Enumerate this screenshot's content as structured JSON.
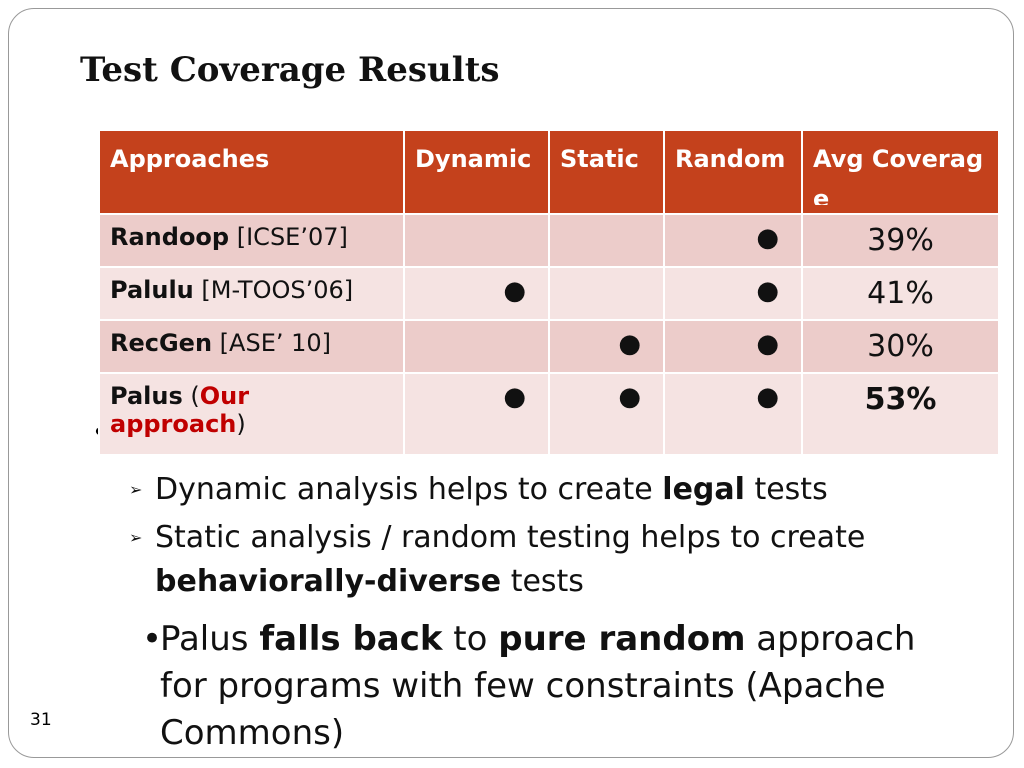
{
  "title": "Test Coverage Results",
  "table": {
    "header": [
      "Approaches",
      "Dynamic",
      "Static",
      "Random",
      "Avg Coverage"
    ],
    "rows": [
      {
        "approach": [
          {
            "text": "Randoop",
            "bold": true
          },
          {
            "text": " [ICSE’07]"
          }
        ],
        "dynamic": null,
        "static": null,
        "random": "●",
        "coverage": "39%"
      },
      {
        "approach": [
          {
            "text": "Palulu",
            "bold": true
          },
          {
            "text": " [M-TOOS’06]"
          }
        ],
        "dynamic": "●",
        "static": null,
        "random": "●",
        "coverage": "41%"
      },
      {
        "approach": [
          {
            "text": "RecGen",
            "bold": true
          },
          {
            "text": " [ASE’ 10]"
          }
        ],
        "dynamic": null,
        "static": "●",
        "random": "●",
        "coverage": "30%"
      },
      {
        "approach": [
          {
            "text": "Palus",
            "bold": true
          },
          {
            "text": " ("
          },
          {
            "text": "Our approach",
            "bold": true,
            "color": "#c00000"
          },
          {
            "text": ")"
          }
        ],
        "dynamic": "●",
        "static": "●",
        "random": "●",
        "coverage": "53%",
        "coverage_bold": true
      }
    ]
  },
  "sub_bullets": [
    [
      {
        "text": "Dynamic analysis helps to create "
      },
      {
        "text": "legal",
        "bold": true
      },
      {
        "text": " tests"
      }
    ],
    [
      {
        "text": "Static analysis / random testing helps to create "
      },
      {
        "text": "behaviorally-diverse",
        "bold": true
      },
      {
        "text": " tests"
      }
    ]
  ],
  "main_bullet": [
    {
      "text": "Palus "
    },
    {
      "text": "falls back",
      "bold": true
    },
    {
      "text": " to "
    },
    {
      "text": "pure random",
      "bold": true
    },
    {
      "text": " approach for programs with few constraints (Apache Commons)"
    }
  ],
  "slide_number": "31"
}
